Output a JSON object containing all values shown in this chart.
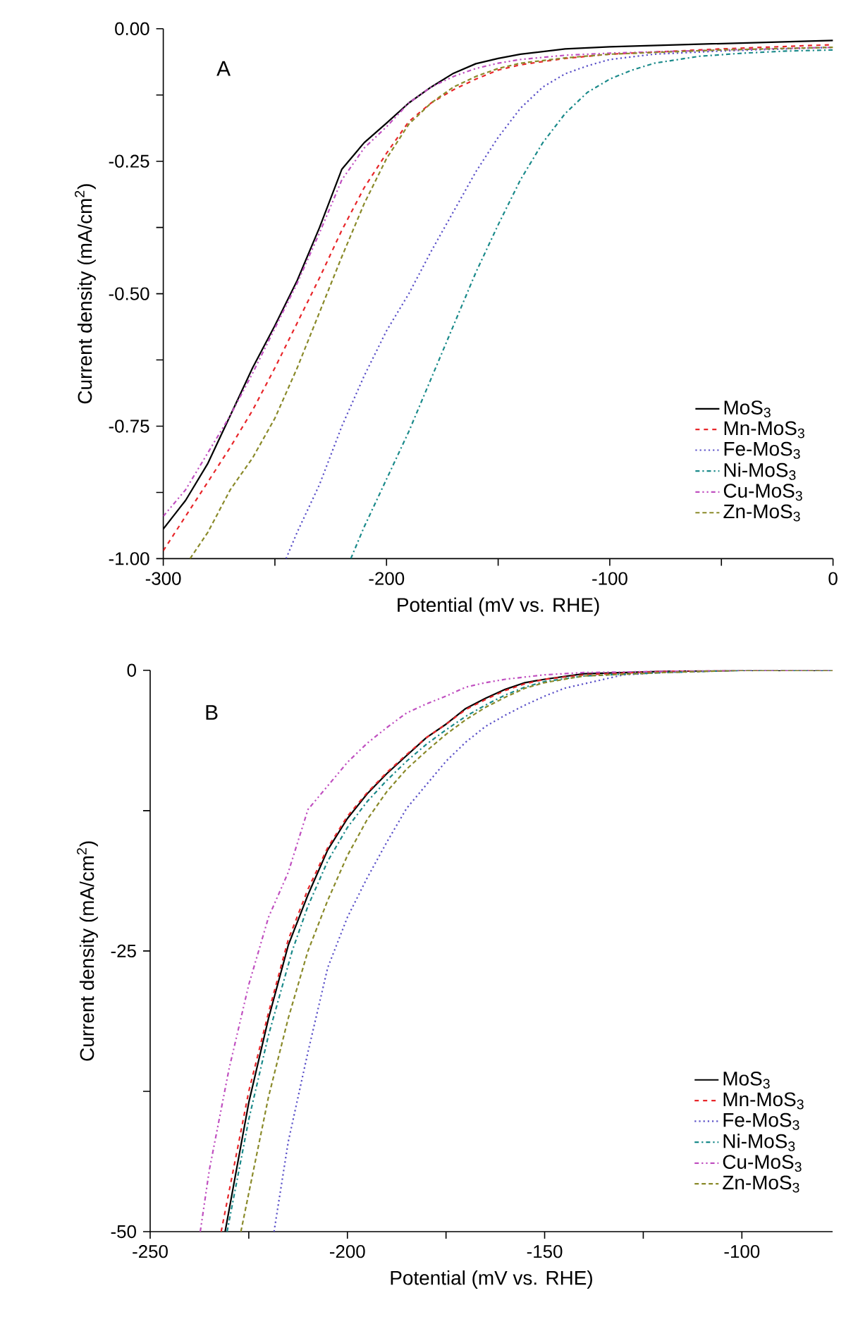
{
  "chart_data": [
    {
      "type": "line",
      "title": "A",
      "xlabel": "Potential (mV vs. RHE)",
      "ylabel": "Current density (mA/cm$^{2}$)",
      "xlim": [
        -300,
        0
      ],
      "ylim": [
        -1.0,
        0.0
      ],
      "xticks": [
        -300,
        {
          "value": -250,
          "label": null
        },
        -200,
        {
          "value": -150,
          "label": null
        },
        -100,
        {
          "value": -50,
          "label": null
        },
        0
      ],
      "yticks": [
        {
          "value": -1.0,
          "label": "-1.00"
        },
        {
          "value": -0.875,
          "label": null
        },
        {
          "value": -0.75,
          "label": "-0.75"
        },
        {
          "value": -0.625,
          "label": null
        },
        {
          "value": -0.5,
          "label": "-0.50"
        },
        {
          "value": -0.375,
          "label": null
        },
        {
          "value": -0.25,
          "label": "-0.25"
        },
        {
          "value": -0.125,
          "label": null
        },
        {
          "value": 0.0,
          "label": "0.00"
        }
      ],
      "legend": "bottom right",
      "series": [
        {
          "name": "MoS$_{3}$",
          "color": "#000000",
          "line_style": "solid",
          "x": [
            -300,
            -290,
            -280,
            -270,
            -260,
            -250,
            -240,
            -230,
            -220,
            -210,
            -200,
            -190,
            -180,
            -170,
            -160,
            -150,
            -140,
            -120,
            -100,
            -50,
            0
          ],
          "values": [
            -0.944,
            -0.89,
            -0.82,
            -0.73,
            -0.64,
            -0.56,
            -0.475,
            -0.375,
            -0.265,
            -0.215,
            -0.178,
            -0.14,
            -0.11,
            -0.084,
            -0.066,
            -0.056,
            -0.048,
            -0.038,
            -0.034,
            -0.028,
            -0.022
          ]
        },
        {
          "name": "Mn-MoS$_{3}$",
          "color": "#e8262a",
          "line_style": "dashed",
          "x": [
            -300,
            -290,
            -280,
            -270,
            -260,
            -250,
            -240,
            -230,
            -220,
            -210,
            -200,
            -190,
            -180,
            -170,
            -160,
            -150,
            -140,
            -120,
            -100,
            -50,
            0
          ],
          "values": [
            -0.985,
            -0.92,
            -0.855,
            -0.79,
            -0.72,
            -0.64,
            -0.555,
            -0.47,
            -0.38,
            -0.3,
            -0.235,
            -0.175,
            -0.14,
            -0.115,
            -0.095,
            -0.078,
            -0.068,
            -0.056,
            -0.048,
            -0.038,
            -0.03
          ]
        },
        {
          "name": "Fe-MoS$_{3}$",
          "color": "#5a50c8",
          "line_style": "dotted",
          "x": [
            -245,
            -240,
            -230,
            -220,
            -210,
            -200,
            -190,
            -180,
            -170,
            -160,
            -150,
            -140,
            -130,
            -120,
            -110,
            -100,
            -80,
            -50,
            0
          ],
          "values": [
            -1.0,
            -0.95,
            -0.86,
            -0.75,
            -0.655,
            -0.57,
            -0.5,
            -0.42,
            -0.345,
            -0.27,
            -0.205,
            -0.15,
            -0.11,
            -0.085,
            -0.07,
            -0.058,
            -0.048,
            -0.042,
            -0.035
          ]
        },
        {
          "name": "Ni-MoS$_{3}$",
          "color": "#1a8a8a",
          "line_style": "dashdot",
          "x": [
            -216,
            -210,
            -200,
            -190,
            -180,
            -170,
            -160,
            -150,
            -140,
            -130,
            -120,
            -110,
            -100,
            -90,
            -80,
            -60,
            -40,
            -20,
            0
          ],
          "values": [
            -1.0,
            -0.94,
            -0.85,
            -0.76,
            -0.66,
            -0.56,
            -0.46,
            -0.37,
            -0.285,
            -0.215,
            -0.16,
            -0.12,
            -0.095,
            -0.078,
            -0.065,
            -0.052,
            -0.046,
            -0.042,
            -0.04
          ]
        },
        {
          "name": "Cu-MoS$_{3}$",
          "color": "#c050c0",
          "line_style": "dashdotdot",
          "x": [
            -300,
            -290,
            -280,
            -270,
            -260,
            -250,
            -240,
            -230,
            -220,
            -210,
            -200,
            -190,
            -180,
            -170,
            -160,
            -150,
            -140,
            -120,
            -100,
            -50,
            0
          ],
          "values": [
            -0.92,
            -0.87,
            -0.8,
            -0.73,
            -0.65,
            -0.565,
            -0.48,
            -0.385,
            -0.285,
            -0.225,
            -0.185,
            -0.14,
            -0.11,
            -0.09,
            -0.075,
            -0.065,
            -0.058,
            -0.05,
            -0.046,
            -0.04,
            -0.035
          ]
        },
        {
          "name": "Zn-MoS$_{3}$",
          "color": "#8a8a2a",
          "line_style": "shortdash",
          "x": [
            -288,
            -280,
            -270,
            -260,
            -250,
            -240,
            -230,
            -220,
            -210,
            -200,
            -190,
            -180,
            -170,
            -160,
            -150,
            -140,
            -120,
            -100,
            -50,
            0
          ],
          "values": [
            -1.0,
            -0.95,
            -0.87,
            -0.81,
            -0.735,
            -0.64,
            -0.535,
            -0.43,
            -0.33,
            -0.245,
            -0.18,
            -0.14,
            -0.11,
            -0.09,
            -0.075,
            -0.065,
            -0.055,
            -0.048,
            -0.04,
            -0.035
          ]
        }
      ]
    },
    {
      "type": "line",
      "title": "B",
      "xlabel": "Potential (mV vs. RHE)",
      "ylabel": "Current density (mA/cm$^{2}$)",
      "xlim": [
        -250,
        -77
      ],
      "ylim": [
        -50,
        0
      ],
      "xticks": [
        -250,
        {
          "value": -225,
          "label": null
        },
        -200,
        {
          "value": -175,
          "label": null
        },
        -150,
        {
          "value": -125,
          "label": null
        },
        -100
      ],
      "yticks": [
        -50,
        {
          "value": -37.5,
          "label": null
        },
        -25,
        {
          "value": -12.5,
          "label": null
        },
        0
      ],
      "legend": "bottom right",
      "series": [
        {
          "name": "MoS$_{3}$",
          "color": "#000000",
          "line_style": "solid",
          "x": [
            -231,
            -225,
            -220,
            -215,
            -210,
            -205,
            -200,
            -195,
            -190,
            -185,
            -180,
            -175,
            -170,
            -165,
            -160,
            -155,
            -150,
            -140,
            -120,
            -100,
            -77
          ],
          "values": [
            -50,
            -38.5,
            -31,
            -24.5,
            -20,
            -16,
            -13.2,
            -11,
            -9.2,
            -7.6,
            -6,
            -4.8,
            -3.4,
            -2.5,
            -1.7,
            -1.1,
            -0.8,
            -0.3,
            -0.1,
            0,
            0
          ]
        },
        {
          "name": "Mn-MoS$_{3}$",
          "color": "#e8262a",
          "line_style": "dashed",
          "x": [
            -232,
            -225,
            -220,
            -215,
            -210,
            -205,
            -200,
            -195,
            -190,
            -185,
            -180,
            -175,
            -170,
            -165,
            -160,
            -155,
            -150,
            -140,
            -120,
            -100,
            -77
          ],
          "values": [
            -50,
            -37.5,
            -30.5,
            -24,
            -19.5,
            -15.8,
            -13,
            -10.9,
            -9.1,
            -7.5,
            -6,
            -4.8,
            -3.5,
            -2.6,
            -1.8,
            -1.2,
            -0.8,
            -0.4,
            -0.1,
            0,
            0
          ]
        },
        {
          "name": "Fe-MoS$_{3}$",
          "color": "#5a50c8",
          "line_style": "dotted",
          "x": [
            -218.6,
            -215,
            -210,
            -205,
            -200,
            -195,
            -190,
            -185,
            -180,
            -175,
            -170,
            -165,
            -160,
            -155,
            -150,
            -145,
            -140,
            -130,
            -120,
            -100,
            -77
          ],
          "values": [
            -50,
            -42,
            -34,
            -26.5,
            -22,
            -18.5,
            -15.3,
            -12.3,
            -10.2,
            -8.1,
            -6.4,
            -5,
            -4,
            -3.1,
            -2.3,
            -1.6,
            -1.2,
            -0.4,
            -0.2,
            0,
            0
          ]
        },
        {
          "name": "Ni-MoS$_{3}$",
          "color": "#1a8a8a",
          "line_style": "dashdot",
          "x": [
            -230.5,
            -225,
            -220,
            -214,
            -210,
            -205,
            -200,
            -195,
            -190,
            -185,
            -180,
            -175,
            -170,
            -165,
            -160,
            -155,
            -150,
            -140,
            -120,
            -100,
            -77
          ],
          "values": [
            -50,
            -40,
            -32.5,
            -25,
            -21,
            -17,
            -14,
            -11.7,
            -9.8,
            -8.1,
            -6.6,
            -5.3,
            -4.1,
            -3.1,
            -2.2,
            -1.5,
            -1,
            -0.5,
            -0.2,
            0,
            0
          ]
        },
        {
          "name": "Cu-MoS$_{3}$",
          "color": "#c050c0",
          "line_style": "dashdotdot",
          "x": [
            -237.3,
            -235,
            -230,
            -225,
            -220,
            -215,
            -210,
            -205,
            -200,
            -195,
            -190,
            -185,
            -180,
            -175,
            -170,
            -165,
            -160,
            -150,
            -140,
            -120,
            -100,
            -77
          ],
          "values": [
            -50,
            -44.5,
            -35.5,
            -28,
            -22,
            -18,
            -12.4,
            -10.3,
            -8.2,
            -6.5,
            -5.1,
            -3.8,
            -3,
            -2.3,
            -1.5,
            -1.1,
            -0.8,
            -0.4,
            -0.2,
            -0.1,
            0,
            0
          ]
        },
        {
          "name": "Zn-MoS$_{3}$",
          "color": "#8a8a2a",
          "line_style": "shortdash",
          "x": [
            -227,
            -220,
            -215,
            -210,
            -205,
            -200,
            -195,
            -190,
            -185,
            -180,
            -175,
            -170,
            -165,
            -160,
            -155,
            -150,
            -140,
            -120,
            -100,
            -77
          ],
          "values": [
            -50,
            -38,
            -31,
            -25,
            -20.5,
            -16.5,
            -13.3,
            -10.8,
            -8.8,
            -7.2,
            -5.7,
            -4.4,
            -3.3,
            -2.4,
            -1.6,
            -1.1,
            -0.5,
            -0.2,
            0,
            0
          ]
        }
      ]
    }
  ]
}
